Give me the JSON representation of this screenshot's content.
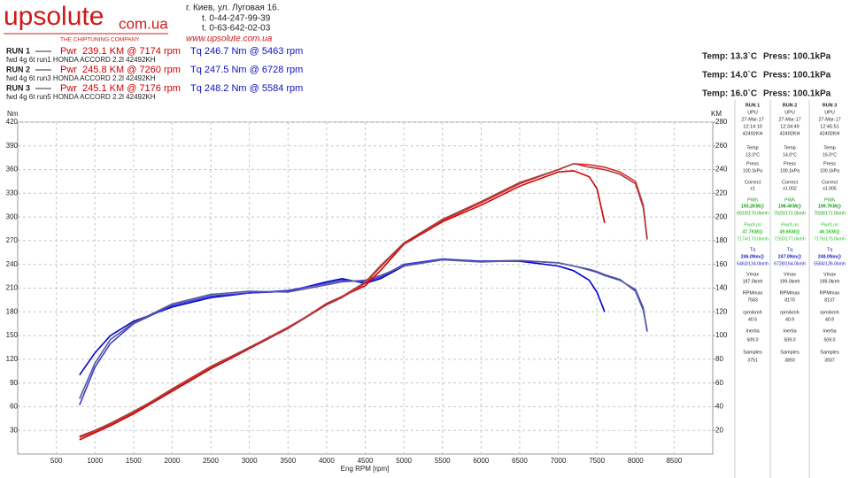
{
  "header": {
    "logo_main": "upsolute",
    "logo_domain": "com.ua",
    "tagline": "THE CHIPTUNING COMPANY",
    "address": [
      "г. Киев, ул. Луговая 16.",
      "t. 0-44-247-99-39",
      "t. 0-63-642-02-03"
    ],
    "website": "www.upsolute.com.ua"
  },
  "runs": [
    {
      "label": "RUN 1",
      "pwr": "Pwr  239.1 KM @ 7174 rpm",
      "tq": "Tq 246.7 Nm @ 5463 rpm",
      "desc": "fwd 4g 6t run1 HONDA ACCORD 2.2l 42492KH",
      "temp": "Temp: 13.3`C",
      "press": "Press: 100.1kPa"
    },
    {
      "label": "RUN 2",
      "pwr": "Pwr  245.8 KM @ 7260 rpm",
      "tq": "Tq 247.5 Nm @ 6728 rpm",
      "desc": "fwd 4g 6t run3 HONDA ACCORD 2.2l 42492KH",
      "temp": "Temp: 14.0`C",
      "press": "Press: 100.1kPa"
    },
    {
      "label": "RUN 3",
      "pwr": "Pwr  245.1 KM @ 7176 rpm",
      "tq": "Tq 248.2 Nm @ 5584 rpm",
      "desc": "fwd 4g 6t run5 HONDA ACCORD 2.2l 42492KH",
      "temp": "Temp: 16.0`C",
      "press": "Press: 100.1kPa"
    }
  ],
  "run_table": {
    "labels": [
      "Temp",
      "Press",
      "Correct",
      "PWh",
      "Pwr/Los",
      "Tq",
      "Vmax",
      "RPMmax",
      "rpm/kmh",
      "Inertia",
      "Samples"
    ],
    "columns": [
      {
        "head": [
          "RUN 1",
          "UPU",
          "27-Mar-17",
          "12:14:10",
          "42492KH"
        ],
        "cells": [
          [
            "13.3°C"
          ],
          [
            "100.1kPa"
          ],
          [
            "x1"
          ],
          [
            "193.2KM@",
            "6919/170.0kmh"
          ],
          [
            "47.7KM@",
            "7174/170.0kmh"
          ],
          [
            "246.0Nm@",
            "5463/134.0kmh"
          ],
          [
            "187.0kmh"
          ],
          [
            "7583"
          ],
          [
            "40.5"
          ],
          [
            "509.0"
          ],
          [
            "3751"
          ]
        ]
      },
      {
        "head": [
          "RUN 2",
          "UPU",
          "27-Mar-17",
          "12:34:49",
          "42492KH"
        ],
        "cells": [
          [
            "14.0°C"
          ],
          [
            "100.1kPa"
          ],
          [
            "x1.002"
          ],
          [
            "198.4KM@",
            "7025/171.0kmh"
          ],
          [
            "49.6KM@",
            "7260/177.0kmh"
          ],
          [
            "247.0Nm@",
            "6728/164.0kmh"
          ],
          [
            "199.0kmh"
          ],
          [
            "8170"
          ],
          [
            "40.9"
          ],
          [
            "509.0"
          ],
          [
            "3893"
          ]
        ]
      },
      {
        "head": [
          "RUN 3",
          "UPU",
          "27-Mar-17",
          "12:45:51",
          "42492KH"
        ],
        "cells": [
          [
            "16.0°C"
          ],
          [
            "100.1kPa"
          ],
          [
            "x1.005"
          ],
          [
            "199.7KM@",
            "7028/171.0kmh"
          ],
          [
            "46.1KM@",
            "7176/175.0kmh"
          ],
          [
            "248.0Nm@",
            "5584/136.0kmh"
          ],
          [
            "198.0kmh"
          ],
          [
            "8137"
          ],
          [
            "40.9"
          ],
          [
            "509.0"
          ],
          [
            "3937"
          ]
        ]
      }
    ]
  },
  "chart_data": {
    "type": "line",
    "x_label": "Eng RPM [rpm]",
    "y_label": "Nm",
    "y2_label": "KM",
    "grid": true,
    "xlim": [
      0,
      9000
    ],
    "xticks": [
      500,
      1000,
      1500,
      2000,
      2500,
      3000,
      3500,
      4000,
      4500,
      5000,
      5500,
      6000,
      6500,
      7000,
      7500,
      8000,
      8500
    ],
    "ylim": [
      0,
      420
    ],
    "yticks": [
      30,
      60,
      90,
      120,
      150,
      180,
      210,
      240,
      270,
      300,
      330,
      360,
      390,
      420
    ],
    "y2lim": [
      0,
      280
    ],
    "y2ticks": [
      20,
      40,
      60,
      80,
      100,
      120,
      140,
      160,
      180,
      200,
      220,
      240,
      260,
      280
    ],
    "x": [
      800,
      1000,
      1200,
      1500,
      2000,
      2500,
      3000,
      3500,
      4000,
      4200,
      4500,
      4700,
      5000,
      5500,
      6000,
      6500,
      7000,
      7200,
      7400,
      7500,
      7600,
      7800,
      8000,
      8100,
      8150
    ],
    "series": [
      {
        "color": "#0000cc",
        "values": [
          100,
          128,
          150,
          168,
          186,
          198,
          204,
          206,
          218,
          222,
          216,
          222,
          238,
          246,
          244,
          244,
          238,
          232,
          220,
          205,
          180,
          null,
          null,
          null,
          null
        ]
      },
      {
        "color": "#3a3ad8",
        "values": [
          62,
          110,
          140,
          165,
          188,
          200,
          204,
          207,
          216,
          220,
          218,
          224,
          240,
          247,
          244,
          245,
          242,
          238,
          233,
          230,
          226,
          220,
          208,
          185,
          155
        ]
      },
      {
        "color": "#5a5a9a",
        "values": [
          70,
          115,
          145,
          166,
          190,
          202,
          206,
          205,
          214,
          218,
          220,
          226,
          238,
          246,
          243,
          245,
          242,
          238,
          234,
          231,
          227,
          221,
          206,
          182,
          157
        ]
      },
      {
        "color": "#d00000",
        "axis": "y2",
        "values": [
          12,
          18,
          24,
          34,
          53,
          72,
          89,
          106,
          127,
          133,
          142,
          155,
          177,
          196,
          210,
          226,
          238,
          239,
          234,
          224,
          195,
          null,
          null,
          null,
          null
        ]
      },
      {
        "color": "#e02828",
        "axis": "y2",
        "values": [
          14,
          19,
          25,
          35,
          55,
          74,
          90,
          107,
          126,
          132,
          144,
          158,
          178,
          197,
          212,
          228,
          240,
          245,
          244,
          243,
          242,
          238,
          230,
          210,
          182
        ]
      },
      {
        "color": "#a04040",
        "axis": "y2",
        "values": [
          15,
          20,
          26,
          36,
          54,
          73,
          90,
          106,
          126,
          133,
          145,
          159,
          178,
          198,
          213,
          229,
          240,
          245,
          242,
          241,
          240,
          236,
          228,
          208,
          181
        ]
      }
    ]
  }
}
